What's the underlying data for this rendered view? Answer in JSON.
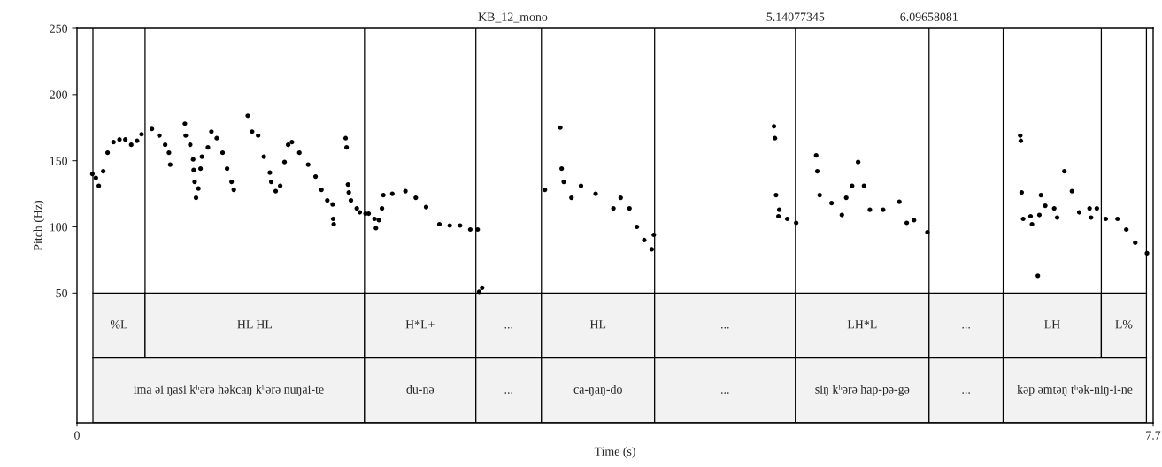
{
  "chart_data": {
    "type": "scatter",
    "xlabel": "Time (s)",
    "ylabel": "Pitch (Hz)",
    "marker": "circle",
    "xlim": [
      0,
      7.7
    ],
    "xticks": [
      0,
      7.7
    ],
    "ylim": [
      -48,
      250
    ],
    "yticks": [
      50,
      100,
      150,
      200,
      250
    ],
    "annotations": [
      "KB_12_mono"
    ],
    "ref_lines": [
      {
        "axis": "x",
        "value": 0.114
      },
      {
        "axis": "x",
        "value": 0.487
      },
      {
        "axis": "x",
        "value": 2.057
      },
      {
        "axis": "x",
        "value": 2.854
      },
      {
        "axis": "x",
        "value": 3.323
      },
      {
        "axis": "x",
        "value": 4.133
      },
      {
        "axis": "x",
        "value": 5.14077345,
        "label": "5.14077345"
      },
      {
        "axis": "x",
        "value": 6.09658081,
        "label": "6.09658081"
      },
      {
        "axis": "x",
        "value": 6.627
      },
      {
        "axis": "x",
        "value": 7.329
      },
      {
        "axis": "x",
        "value": 7.652
      }
    ],
    "bands": [
      {
        "axis": "x",
        "from": 0.114,
        "to": 0.487,
        "label": "%L",
        "color": "#f2f2f2"
      },
      {
        "axis": "x",
        "from": 0.487,
        "to": 2.057,
        "label": "HL HL",
        "color": "#f2f2f2"
      },
      {
        "axis": "x",
        "from": 2.057,
        "to": 2.854,
        "label": "H*L+",
        "color": "#f2f2f2"
      },
      {
        "axis": "x",
        "from": 2.854,
        "to": 3.323,
        "label": "...",
        "color": "#f2f2f2"
      },
      {
        "axis": "x",
        "from": 3.323,
        "to": 4.133,
        "label": "HL",
        "color": "#f2f2f2"
      },
      {
        "axis": "x",
        "from": 4.133,
        "to": 5.14077345,
        "label": "...",
        "color": "#f2f2f2"
      },
      {
        "axis": "x",
        "from": 5.14077345,
        "to": 6.09658081,
        "label": "LH*L",
        "color": "#f2f2f2"
      },
      {
        "axis": "x",
        "from": 6.09658081,
        "to": 6.627,
        "label": "...",
        "color": "#f2f2f2"
      },
      {
        "axis": "x",
        "from": 6.627,
        "to": 7.329,
        "label": "LH",
        "color": "#f2f2f2"
      },
      {
        "axis": "x",
        "from": 7.329,
        "to": 7.652,
        "label": "L%",
        "color": "#f2f2f2"
      },
      {
        "axis": "x",
        "from": 0.114,
        "to": 2.057,
        "label": "ima əi ŋasi kʰərə həkcaŋ kʰərə nuŋai-te",
        "color": "#f2f2f2"
      },
      {
        "axis": "x",
        "from": 2.057,
        "to": 2.854,
        "label": "du-nə",
        "color": "#f2f2f2"
      },
      {
        "axis": "x",
        "from": 2.854,
        "to": 3.323,
        "label": "...",
        "color": "#f2f2f2"
      },
      {
        "axis": "x",
        "from": 3.323,
        "to": 4.133,
        "label": "ca-ŋaŋ-do",
        "color": "#f2f2f2"
      },
      {
        "axis": "x",
        "from": 4.133,
        "to": 5.14077345,
        "label": "...",
        "color": "#f2f2f2"
      },
      {
        "axis": "x",
        "from": 5.14077345,
        "to": 6.09658081,
        "label": "siŋ kʰərə hap-pə-gə",
        "color": "#f2f2f2"
      },
      {
        "axis": "x",
        "from": 6.09658081,
        "to": 6.627,
        "label": "...",
        "color": "#f2f2f2"
      },
      {
        "axis": "x",
        "from": 6.627,
        "to": 7.652,
        "label": "kəp əmtəŋ tʰək-niŋ-i-ne",
        "color": "#f2f2f2"
      }
    ],
    "series": [
      {
        "color": "#000000",
        "x": [
          0.11,
          0.135,
          0.156,
          0.188,
          0.219,
          0.261,
          0.304,
          0.346,
          0.388,
          0.43,
          0.462,
          0.536,
          0.589,
          0.631,
          0.658,
          0.667,
          0.772,
          0.778,
          0.81,
          0.831,
          0.835,
          0.842,
          0.852,
          0.869,
          0.884,
          0.894,
          0.937,
          0.962,
          1.0,
          1.042,
          1.074,
          1.106,
          1.122,
          1.222,
          1.253,
          1.296,
          1.337,
          1.38,
          1.39,
          1.422,
          1.454,
          1.485,
          1.511,
          1.538,
          1.591,
          1.654,
          1.707,
          1.749,
          1.791,
          1.829,
          1.833,
          1.837,
          1.922,
          1.929,
          1.939,
          1.945,
          1.96,
          2.002,
          2.023,
          2.065,
          2.087,
          2.129,
          2.139,
          2.16,
          2.182,
          2.192,
          2.256,
          2.35,
          2.424,
          2.498,
          2.593,
          2.667,
          2.741,
          2.814,
          2.867,
          2.878,
          2.899,
          3.348,
          3.458,
          3.468,
          3.483,
          3.538,
          3.606,
          3.711,
          3.838,
          3.89,
          3.953,
          4.006,
          4.059,
          4.112,
          4.127,
          4.987,
          4.994,
          5.002,
          5.019,
          5.025,
          5.082,
          5.146,
          5.289,
          5.297,
          5.314,
          5.399,
          5.473,
          5.504,
          5.546,
          5.589,
          5.631,
          5.673,
          5.768,
          5.884,
          5.937,
          5.989,
          6.085,
          6.749,
          6.753,
          6.759,
          6.77,
          6.823,
          6.833,
          6.875,
          6.886,
          6.897,
          6.928,
          6.992,
          7.013,
          7.065,
          7.119,
          7.171,
          7.245,
          7.256,
          7.297,
          7.361,
          7.445,
          7.508,
          7.572,
          7.656
        ],
        "values": [
          140,
          137,
          131,
          142,
          156,
          164,
          166,
          166,
          162,
          165,
          170,
          174,
          169,
          162,
          156,
          147,
          178,
          169,
          162,
          151,
          143,
          134,
          122,
          129,
          144,
          153,
          160,
          172,
          167,
          156,
          144,
          134,
          128,
          184,
          172,
          169,
          153,
          141,
          134,
          127,
          131,
          149,
          162,
          164,
          156,
          147,
          138,
          128,
          120,
          117,
          106,
          102,
          167,
          160,
          132,
          126,
          120,
          114,
          111,
          110,
          110,
          106,
          99,
          105,
          114,
          124,
          125,
          127,
          122,
          115,
          102,
          101,
          101,
          98,
          98,
          51,
          54,
          128,
          175,
          144,
          134,
          122,
          131,
          125,
          114,
          122,
          114,
          100,
          90,
          83,
          94,
          176,
          167,
          124,
          108,
          113,
          106,
          103,
          154,
          142,
          124,
          118,
          109,
          122,
          131,
          149,
          131,
          113,
          113,
          119,
          103,
          105,
          96,
          169,
          165,
          126,
          106,
          108,
          102,
          63,
          109,
          124,
          116,
          114,
          107,
          142,
          127,
          111,
          114,
          107,
          114,
          106,
          106,
          98,
          88,
          80
        ]
      }
    ]
  }
}
